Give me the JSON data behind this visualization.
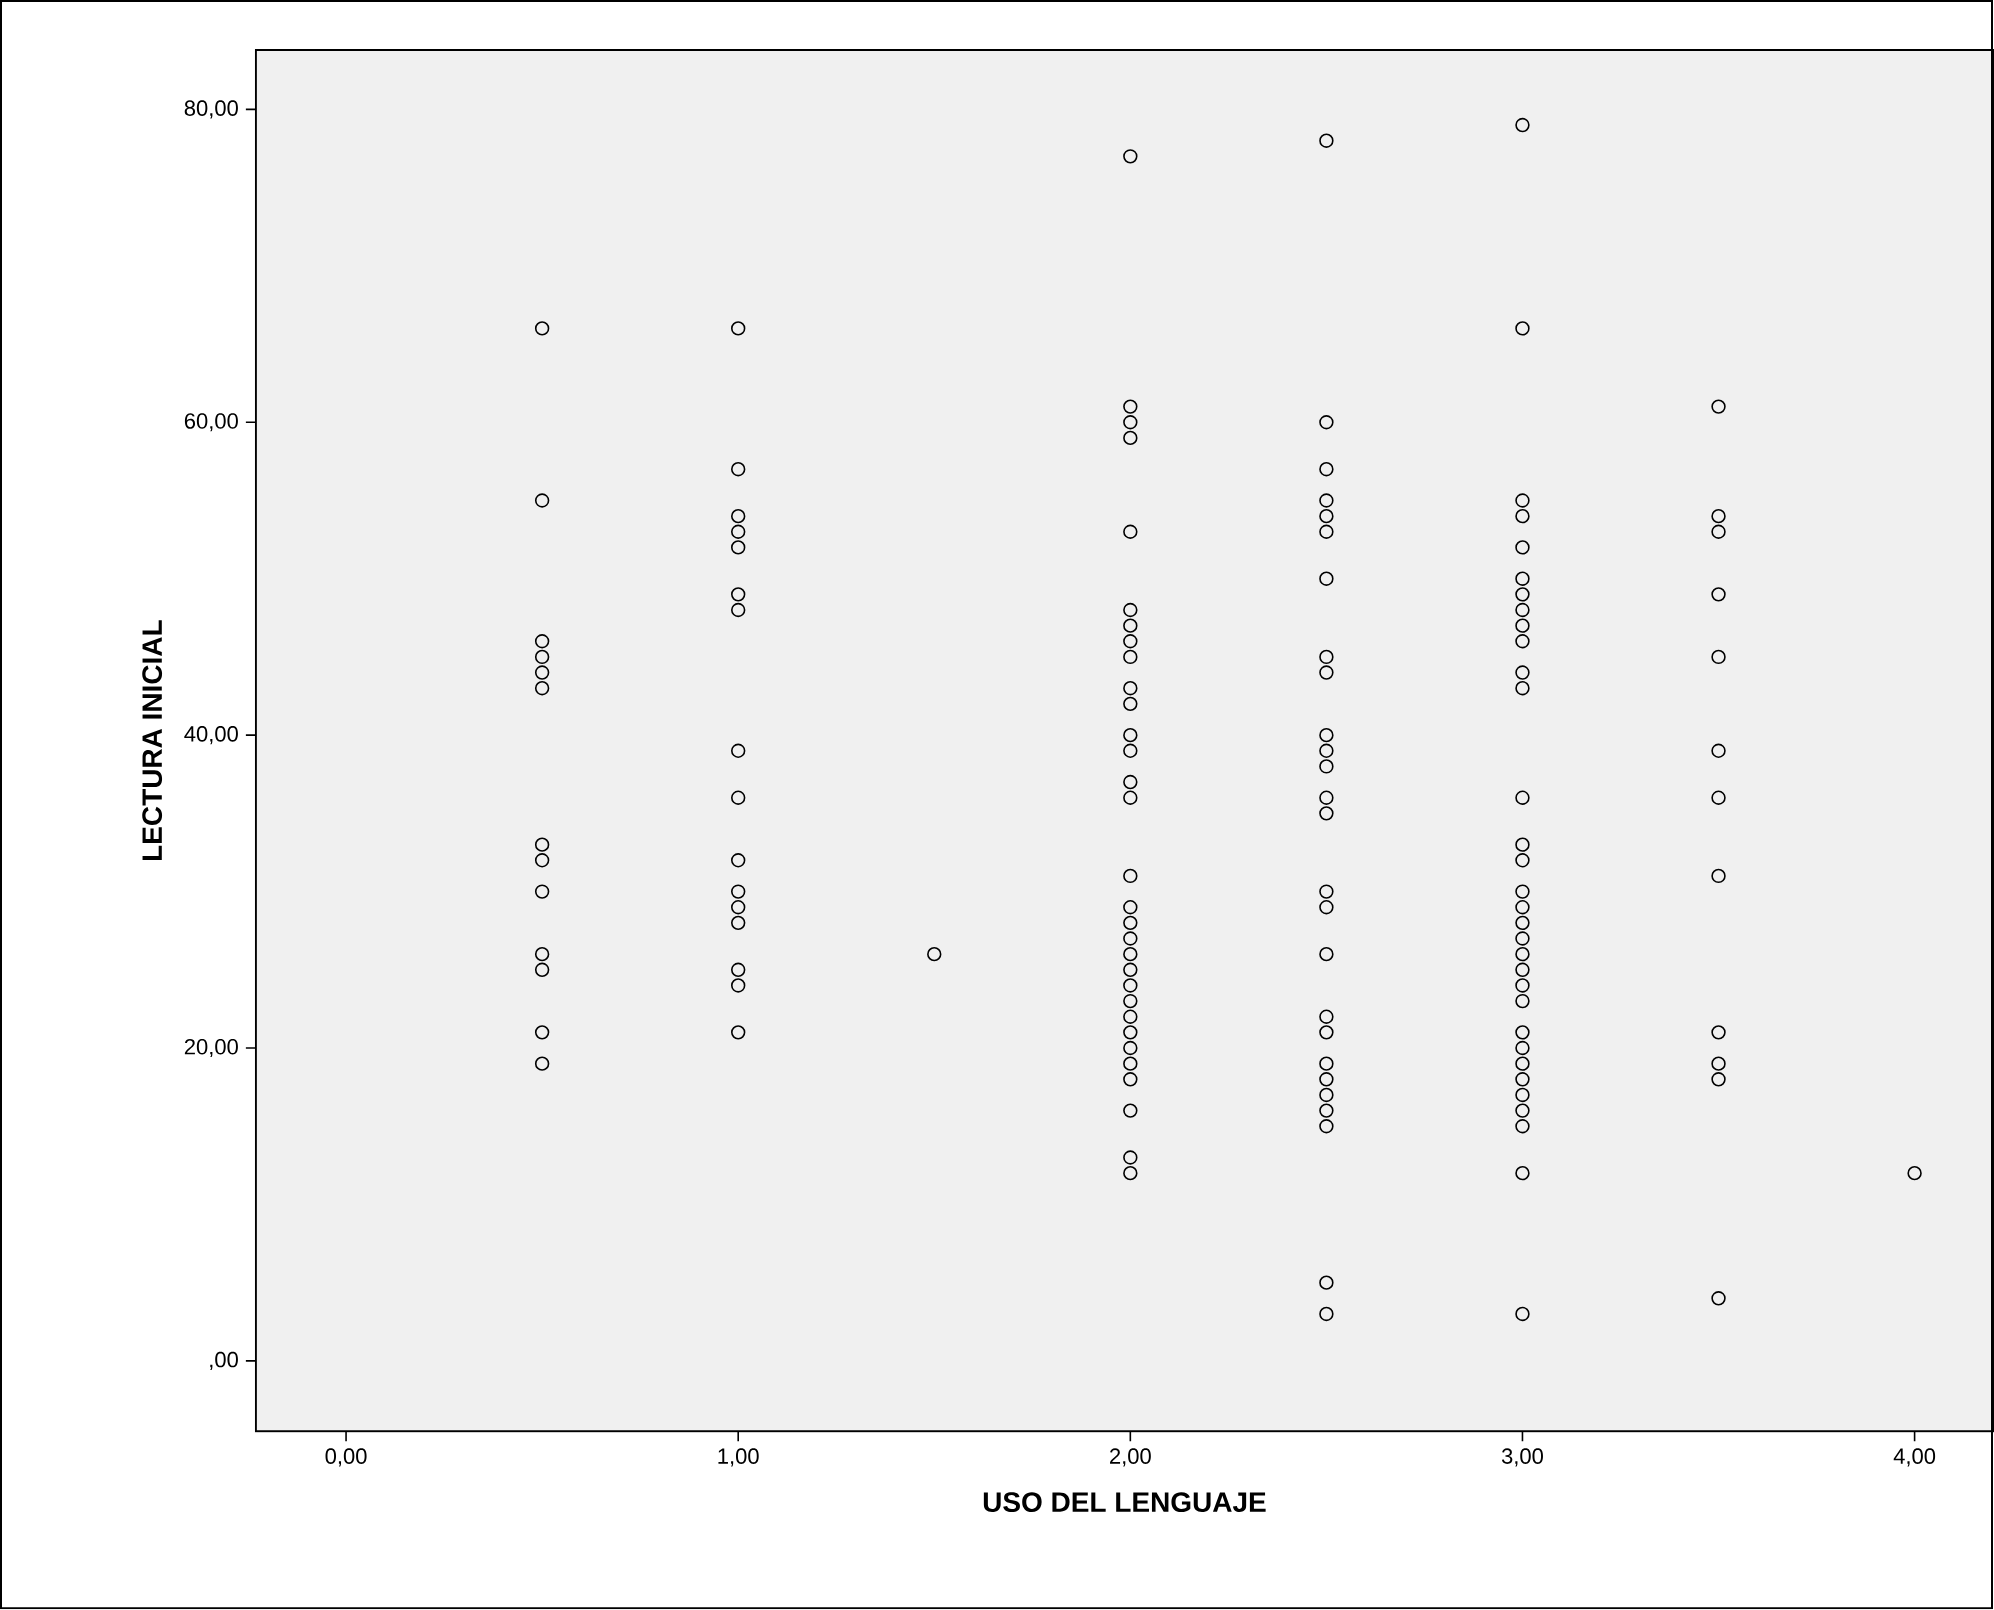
{
  "chart_data": {
    "type": "scatter",
    "xlabel": "USO DEL  LENGUAJE",
    "ylabel": "LECTURA INICIAL",
    "x": [
      0.5,
      0.5,
      0.5,
      0.5,
      0.5,
      0.5,
      0.5,
      0.5,
      0.5,
      0.5,
      0.5,
      0.5,
      0.5,
      1,
      1,
      1,
      1,
      1,
      1,
      1,
      1,
      1,
      1,
      1,
      1,
      1,
      1,
      1,
      1,
      1.5,
      2,
      2,
      2,
      2,
      2,
      2,
      2,
      2,
      2,
      2,
      2,
      2,
      2,
      2,
      2,
      2,
      2,
      2,
      2,
      2,
      2,
      2,
      2,
      2,
      2,
      2,
      2,
      2,
      2,
      2,
      2,
      2.5,
      2.5,
      2.5,
      2.5,
      2.5,
      2.5,
      2.5,
      2.5,
      2.5,
      2.5,
      2.5,
      2.5,
      2.5,
      2.5,
      2.5,
      2.5,
      2.5,
      2.5,
      2.5,
      2.5,
      2.5,
      2.5,
      2.5,
      2.5,
      2.5,
      2.5,
      3,
      3,
      3,
      3,
      3,
      3,
      3,
      3,
      3,
      3,
      3,
      3,
      3,
      3,
      3,
      3,
      3,
      3,
      3,
      3,
      3,
      3,
      3,
      3,
      3,
      3,
      3,
      3,
      3,
      3,
      3,
      3,
      3.5,
      3.5,
      3.5,
      3.5,
      3.5,
      3.5,
      3.5,
      3.5,
      3.5,
      3.5,
      3.5,
      3.5,
      4
    ],
    "values": [
      66,
      55,
      46,
      45,
      44,
      43,
      33,
      32,
      30,
      26,
      25,
      21,
      19,
      66,
      57,
      54,
      53,
      52,
      49,
      48,
      39,
      36,
      32,
      30,
      29,
      28,
      25,
      24,
      21,
      26,
      77,
      61,
      60,
      59,
      53,
      48,
      47,
      46,
      45,
      43,
      42,
      40,
      39,
      37,
      36,
      31,
      29,
      28,
      27,
      26,
      25,
      24,
      23,
      22,
      21,
      20,
      19,
      18,
      16,
      13,
      12,
      78,
      60,
      57,
      55,
      54,
      53,
      50,
      45,
      44,
      40,
      39,
      38,
      36,
      35,
      30,
      29,
      26,
      22,
      21,
      19,
      18,
      17,
      16,
      15,
      5,
      3,
      79,
      66,
      55,
      54,
      52,
      50,
      49,
      48,
      47,
      46,
      44,
      43,
      36,
      33,
      32,
      30,
      29,
      28,
      27,
      26,
      25,
      24,
      23,
      21,
      20,
      19,
      18,
      17,
      16,
      15,
      12,
      3,
      61,
      54,
      53,
      49,
      45,
      39,
      36,
      31,
      21,
      19,
      18,
      4,
      12
    ],
    "color": "#000000",
    "marker": "circle",
    "grid": false,
    "xlim": [
      -0.23,
      4.2
    ],
    "ylim": [
      -4.5,
      83.8
    ],
    "xticks": [
      {
        "value": 0,
        "label": "0,00"
      },
      {
        "value": 1,
        "label": "1,00"
      },
      {
        "value": 2,
        "label": "2,00"
      },
      {
        "value": 3,
        "label": "3,00"
      },
      {
        "value": 4,
        "label": "4,00"
      }
    ],
    "yticks": [
      {
        "value": 0,
        "label": ",00"
      },
      {
        "value": 20,
        "label": "20,00"
      },
      {
        "value": 40,
        "label": "40,00"
      },
      {
        "value": 60,
        "label": "60,00"
      },
      {
        "value": 80,
        "label": "80,00"
      }
    ]
  }
}
